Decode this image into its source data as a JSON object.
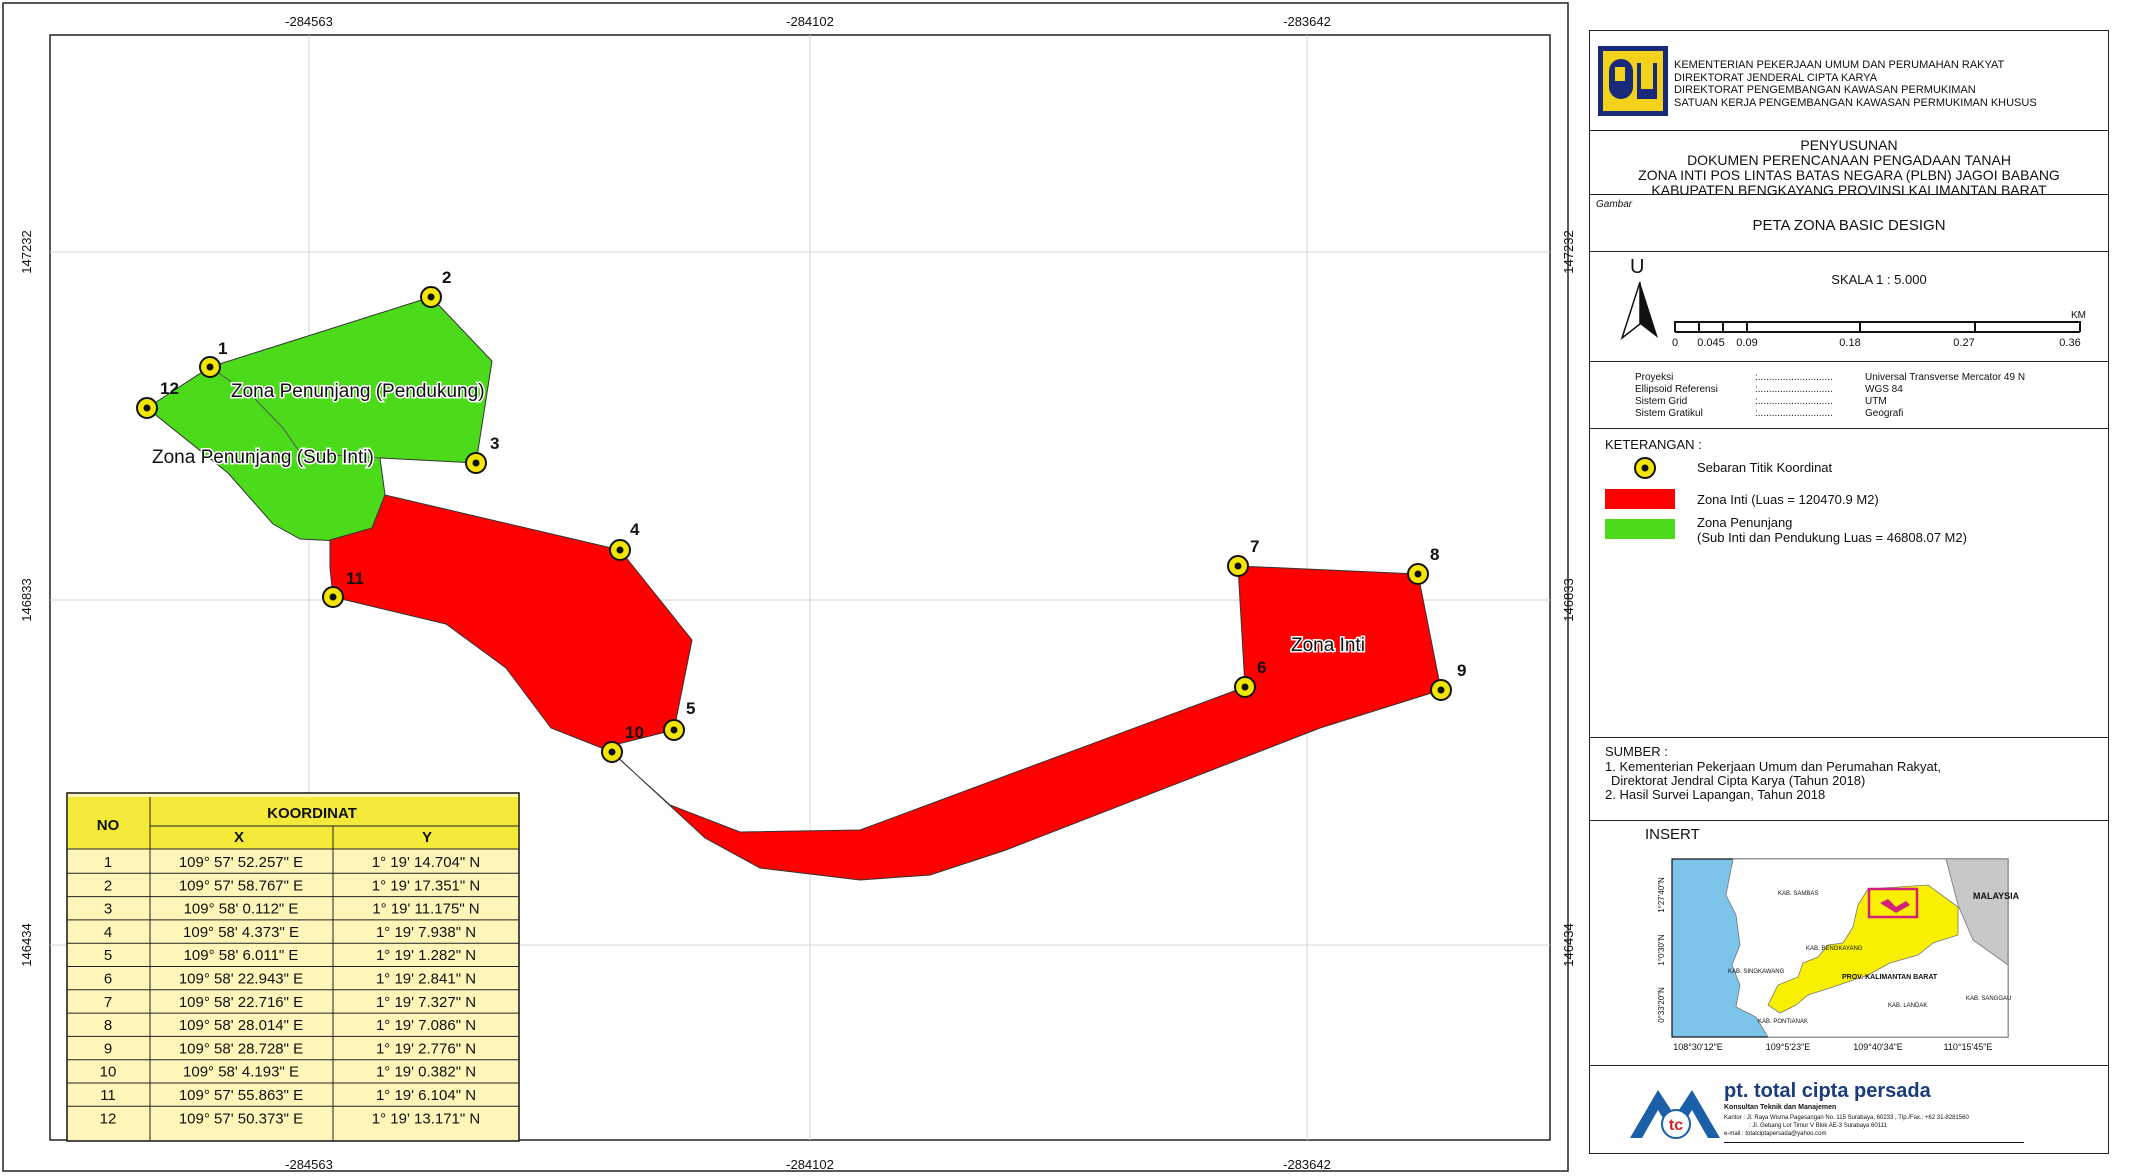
{
  "map": {
    "frame_ticks": {
      "x": [
        "-284563",
        "-284102",
        "-283642"
      ],
      "y": [
        "147232",
        "146833",
        "146434"
      ]
    },
    "points": [
      {
        "no": "1",
        "label": "1"
      },
      {
        "no": "2",
        "label": "2"
      },
      {
        "no": "3",
        "label": "3"
      },
      {
        "no": "4",
        "label": "4"
      },
      {
        "no": "5",
        "label": "5"
      },
      {
        "no": "6",
        "label": "6"
      },
      {
        "no": "7",
        "label": "7"
      },
      {
        "no": "8",
        "label": "8"
      },
      {
        "no": "9",
        "label": "9"
      },
      {
        "no": "10",
        "label": "10"
      },
      {
        "no": "11",
        "label": "11"
      },
      {
        "no": "12",
        "label": "12"
      }
    ],
    "zone_labels": {
      "pendukung": "Zona Penunjang (Pendukung)",
      "sub_inti": "Zona Penunjang (Sub Inti)",
      "inti": "Zona Inti"
    },
    "colors": {
      "zona_inti": "#ff0000",
      "zona_penunjang": "#4cdb1a",
      "point_fill": "#f2e600",
      "table_header": "#f5ea3a",
      "table_body": "#fdf6b8"
    }
  },
  "coord_table": {
    "header_no": "NO",
    "header_koordinat": "KOORDINAT",
    "header_x": "X",
    "header_y": "Y",
    "rows": [
      {
        "no": "1",
        "x": "109° 57' 52.257\" E",
        "y": "1° 19' 14.704\" N"
      },
      {
        "no": "2",
        "x": "109° 57' 58.767\" E",
        "y": "1° 19' 17.351\" N"
      },
      {
        "no": "3",
        "x": "109° 58' 0.112\" E",
        "y": "1° 19' 11.175\" N"
      },
      {
        "no": "4",
        "x": "109° 58' 4.373\" E",
        "y": "1° 19' 7.938\" N"
      },
      {
        "no": "5",
        "x": "109° 58' 6.011\" E",
        "y": "1° 19' 1.282\" N"
      },
      {
        "no": "6",
        "x": "109° 58' 22.943\" E",
        "y": "1° 19' 2.841\" N"
      },
      {
        "no": "7",
        "x": "109° 58' 22.716\" E",
        "y": "1° 19' 7.327\" N"
      },
      {
        "no": "8",
        "x": "109° 58' 28.014\" E",
        "y": "1° 19' 7.086\" N"
      },
      {
        "no": "9",
        "x": "109° 58' 28.728\" E",
        "y": "1° 19' 2.776\" N"
      },
      {
        "no": "10",
        "x": "109° 58' 4.193\" E",
        "y": "1° 19' 0.382\" N"
      },
      {
        "no": "11",
        "x": "109° 57' 55.863\" E",
        "y": "1° 19' 6.104\" N"
      },
      {
        "no": "12",
        "x": "109° 57' 50.373\" E",
        "y": "1° 19' 13.171\" N"
      }
    ]
  },
  "legend": {
    "header_lines": [
      "KEMENTERIAN PEKERJAAN UMUM DAN PERUMAHAN RAKYAT",
      "DIREKTORAT JENDERAL CIPTA KARYA",
      "DIREKTORAT PENGEMBANGAN KAWASAN PERMUKIMAN",
      "SATUAN KERJA PENGEMBANGAN KAWASAN PERMUKIMAN KHUSUS"
    ],
    "title_lines": [
      "PENYUSUNAN",
      "DOKUMEN PERENCANAAN PENGADAAN TANAH",
      "ZONA INTI POS LINTAS BATAS NEGARA (PLBN) JAGOI BABANG",
      "KABUPATEN BENGKAYANG PROVINSI KALIMANTAN BARAT"
    ],
    "gambar_label": "Gambar",
    "gambar_title": "PETA ZONA BASIC DESIGN",
    "north_letter": "U",
    "scale_text": "SKALA 1 : 5.000",
    "scale_ticks": [
      "0",
      "0.045",
      "0.09",
      "0.18",
      "0.27",
      "0.36"
    ],
    "scale_unit": "KM",
    "projection": [
      {
        "key": "Proyeksi",
        "value": "Universal Transverse Mercator 49 N"
      },
      {
        "key": "Ellipsoid Referensi",
        "value": "WGS 84"
      },
      {
        "key": "Sistem Grid",
        "value": "UTM"
      },
      {
        "key": "Sistem Gratikul",
        "value": "Geografi"
      }
    ],
    "projection_sep": ":...........................",
    "keterangan": "KETERANGAN :",
    "items": {
      "titik": "Sebaran Titik Koordinat",
      "inti": "Zona Inti (Luas = 120470.9 M2)",
      "penunjang_1": "Zona Penunjang",
      "penunjang_2": "(Sub Inti dan Pendukung Luas = 46808.07 M2)"
    },
    "sumber_title": "SUMBER :",
    "sumber_lines": [
      "1. Kementerian Pekerjaan Umum dan Perumahan Rakyat,",
      "Direktorat Jendral Cipta Karya (Tahun 2018)",
      "2. Hasil Survei Lapangan, Tahun 2018"
    ],
    "insert_title": "INSERT",
    "insert_labels": {
      "malaysia": "MALAYSIA",
      "sambas": "KAB. SAMBAS",
      "bengkayang": "KAB. BENGKAYANG",
      "singkawang": "KAB. SINGKAWANG",
      "prov": "PROV. KALIMANTAN BARAT",
      "pontianak": "KAB. PONTIANAK",
      "landak": "KAB. LANDAK",
      "sanggau": "KAB. SANGGAU"
    },
    "insert_x_ticks": [
      "108°30'12\"E",
      "109°5'23\"E",
      "109°40'34\"E",
      "110°15'45\"E"
    ],
    "insert_y_ticks": [
      "1°27'40\"N",
      "1°0'30\"N",
      "0°33'20\"N"
    ],
    "company_name": "pt. total cipta persada",
    "company_sub": "Konsultan Teknik dan Manajemen",
    "company_kantor_label": "Kantor",
    "company_kantor": ": Jl. Raya Wisma Pagesangan No. 115 Surabaya, 60233 , Tlp./Fax.: +62 31-8281560",
    "company_kantor2": ": Jl. Gebang Lor Timur V Blok AE-3 Surabaya 60111",
    "company_email_label": "e-mail",
    "company_email": ": totalciptapersada@yahoo.com",
    "company_logo_text": "tc"
  }
}
